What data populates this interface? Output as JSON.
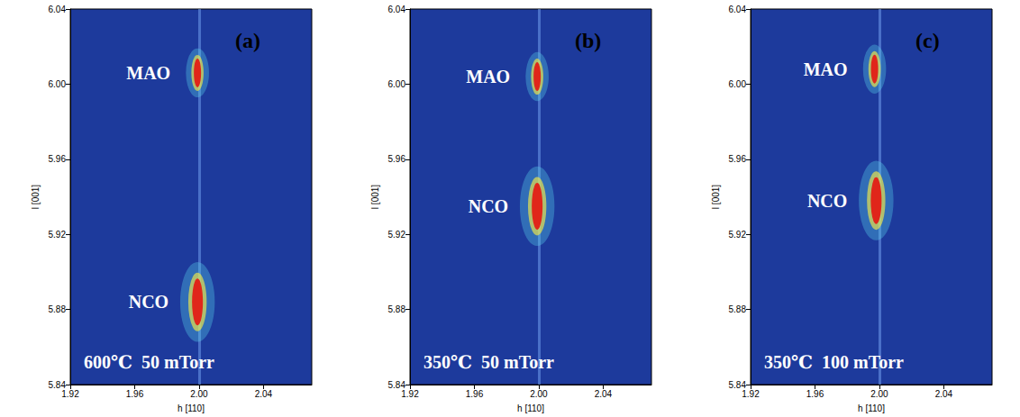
{
  "chart_data": [
    {
      "type": "scatter",
      "title": "(a)",
      "annotation": "600℃  50 mTorr",
      "x_label": "h [110]",
      "y_label": "l [001]",
      "xlim": [
        1.92,
        2.07
      ],
      "ylim": [
        5.84,
        6.04
      ],
      "xticks": [
        1.92,
        1.96,
        {
          "value": 2,
          "label": "2.00"
        },
        2.04
      ],
      "yticks": [
        5.84,
        5.88,
        5.92,
        5.96,
        {
          "value": 6,
          "label": "6.00"
        },
        6.04
      ],
      "grid": false,
      "series": [
        {
          "name": "MAO",
          "color": "#e0261a",
          "x": [
            1.999
          ],
          "values": [
            6.006
          ]
        },
        {
          "name": "NCO",
          "color": "#e0261a",
          "x": [
            1.999
          ],
          "values": [
            5.884
          ]
        }
      ]
    },
    {
      "type": "scatter",
      "title": "(b)",
      "annotation": "350℃  50 mTorr",
      "x_label": "h [110]",
      "y_label": "l [001]",
      "xlim": [
        1.92,
        2.07
      ],
      "ylim": [
        5.84,
        6.04
      ],
      "xticks": [
        1.92,
        1.96,
        {
          "value": 2,
          "label": "2.00"
        },
        2.04
      ],
      "yticks": [
        5.84,
        5.88,
        5.92,
        5.96,
        {
          "value": 6,
          "label": "6.00"
        },
        6.04
      ],
      "grid": false,
      "series": [
        {
          "name": "MAO",
          "color": "#e0261a",
          "x": [
            1.999
          ],
          "values": [
            6.004
          ]
        },
        {
          "name": "NCO",
          "color": "#e0261a",
          "x": [
            1.999
          ],
          "values": [
            5.935
          ]
        }
      ]
    },
    {
      "type": "scatter",
      "title": "(c)",
      "annotation": "350℃  100 mTorr",
      "x_label": "h [110]",
      "y_label": "l [001]",
      "xlim": [
        1.92,
        2.07
      ],
      "ylim": [
        5.84,
        6.04
      ],
      "xticks": [
        1.92,
        1.96,
        {
          "value": 2,
          "label": "2.00"
        },
        2.04
      ],
      "yticks": [
        5.84,
        5.88,
        5.92,
        5.96,
        {
          "value": 6,
          "label": "6.00"
        },
        6.04
      ],
      "grid": false,
      "series": [
        {
          "name": "MAO",
          "color": "#e0261a",
          "x": [
            1.997
          ],
          "values": [
            6.008
          ]
        },
        {
          "name": "NCO",
          "color": "#e0261a",
          "x": [
            1.998
          ],
          "values": [
            5.938
          ]
        }
      ]
    }
  ]
}
